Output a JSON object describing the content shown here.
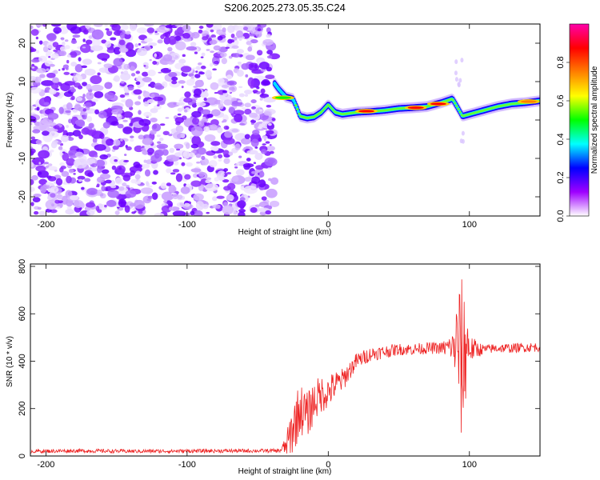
{
  "title": "S206.2025.273.05.35.C24",
  "chart_data": [
    {
      "type": "heatmap",
      "xlabel": "Height of straight line (km)",
      "ylabel": "Frequency (Hz)",
      "xlim": [
        -211,
        150
      ],
      "ylim": [
        -25,
        25
      ],
      "xticks": [
        -200,
        -100,
        0,
        100
      ],
      "yticks": [
        -20,
        -10,
        0,
        10,
        20
      ],
      "colorbar": {
        "label": "Normalized spectral amplitude",
        "range": [
          0,
          1
        ],
        "ticks": [
          "0.0",
          "0.2",
          "0.4",
          "0.6",
          "0.8"
        ],
        "colors": [
          "#ffffff",
          "#9f00ff",
          "#0000ff",
          "#00ffff",
          "#00ff00",
          "#ffff00",
          "#ff7f00",
          "#ff0000",
          "#ff00aa"
        ]
      },
      "noise_region_x": [
        -211,
        -38
      ],
      "ridge": {
        "x": [
          -38,
          -35,
          -30,
          -25,
          -22,
          -20,
          -15,
          -10,
          -5,
          0,
          5,
          10,
          20,
          30,
          40,
          50,
          60,
          70,
          80,
          88,
          92,
          95,
          100,
          110,
          120,
          130,
          140,
          150
        ],
        "y": [
          9.5,
          8,
          6,
          5.5,
          3,
          1,
          0.5,
          0.8,
          2,
          4,
          2,
          1.5,
          2,
          2.2,
          2.5,
          3,
          3.2,
          3.5,
          4.5,
          5.5,
          3,
          1,
          1.5,
          2.5,
          3.5,
          4.2,
          4.5,
          5
        ]
      },
      "ridge_peaks": [
        {
          "x": -32,
          "y": 5.8,
          "amplitude": 0.55
        },
        {
          "x": 27,
          "y": 2.3,
          "amplitude": 0.9
        },
        {
          "x": 62,
          "y": 3.2,
          "amplitude": 0.85
        },
        {
          "x": 78,
          "y": 4.2,
          "amplitude": 0.9
        },
        {
          "x": 142,
          "y": 4.8,
          "amplitude": 0.75
        }
      ]
    },
    {
      "type": "line",
      "xlabel": "Height of straight line (km)",
      "ylabel": "SNR (10 * v/v)",
      "xlim": [
        -211,
        150
      ],
      "ylim": [
        0,
        810
      ],
      "xticks": [
        -200,
        -100,
        0,
        100
      ],
      "yticks": [
        0,
        200,
        400,
        600,
        800
      ],
      "line_color": "#ee2222",
      "x": [
        -211,
        -180,
        -140,
        -100,
        -60,
        -35,
        -30,
        -25,
        -20,
        -15,
        -10,
        -5,
        0,
        5,
        10,
        15,
        20,
        30,
        40,
        50,
        60,
        70,
        80,
        88,
        92,
        95,
        98,
        100,
        110,
        120,
        130,
        140,
        150
      ],
      "y": [
        20,
        22,
        20,
        21,
        22,
        22,
        40,
        120,
        200,
        170,
        230,
        260,
        270,
        300,
        320,
        360,
        400,
        430,
        440,
        450,
        450,
        455,
        455,
        460,
        470,
        380,
        480,
        450,
        450,
        455,
        455,
        458,
        460
      ],
      "noise_amplitude": [
        8,
        8,
        8,
        8,
        8,
        8,
        40,
        120,
        110,
        100,
        90,
        80,
        70,
        60,
        50,
        40,
        35,
        30,
        28,
        25,
        25,
        25,
        25,
        60,
        250,
        380,
        200,
        60,
        20,
        20,
        20,
        20,
        20
      ]
    }
  ]
}
